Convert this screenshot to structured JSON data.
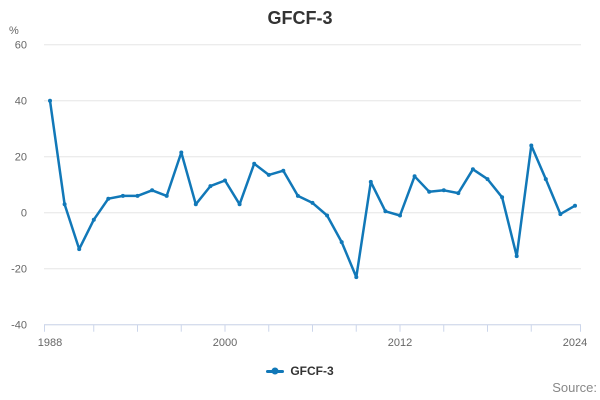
{
  "title": "GFCF-3",
  "y_axis_unit_label": "%",
  "source_label": "Source:",
  "legend": {
    "items": [
      {
        "label": "GFCF-3",
        "color": "#1178b8"
      }
    ]
  },
  "colors": {
    "series": "#1178b8",
    "grid": "#e6e6e6",
    "axis": "#ccd6eb",
    "text_muted": "#666666",
    "title_text": "#333333"
  },
  "chart_data": {
    "type": "line",
    "title": "GFCF-3",
    "xlabel": "",
    "ylabel": "%",
    "ylim": [
      -40,
      60
    ],
    "yticks": [
      60,
      40,
      20,
      0,
      -20,
      -40
    ],
    "xticks_minor": [
      1988,
      1991,
      1994,
      1997,
      2000,
      2003,
      2006,
      2009,
      2012,
      2015,
      2018,
      2021,
      2024
    ],
    "xticks_labeled": [
      1988,
      2000,
      2012,
      2024
    ],
    "grid": true,
    "legend_position": "bottom",
    "x": [
      1988,
      1989,
      1990,
      1991,
      1992,
      1993,
      1994,
      1995,
      1996,
      1997,
      1998,
      1999,
      2000,
      2001,
      2002,
      2003,
      2004,
      2005,
      2006,
      2007,
      2008,
      2009,
      2010,
      2011,
      2012,
      2013,
      2014,
      2015,
      2016,
      2017,
      2018,
      2019,
      2020,
      2021,
      2022,
      2023,
      2024
    ],
    "series": [
      {
        "name": "GFCF-3",
        "values": [
          40,
          3,
          -13,
          -2.5,
          5,
          6,
          6,
          8,
          6,
          21.5,
          3,
          9.5,
          11.5,
          3,
          17.5,
          13.5,
          15,
          6,
          3.5,
          -1,
          -10.5,
          -23,
          11,
          0.5,
          -1,
          13,
          7.5,
          8,
          7,
          15.5,
          12,
          5.5,
          -15.5,
          24,
          12,
          -0.5,
          2.5
        ]
      }
    ]
  }
}
